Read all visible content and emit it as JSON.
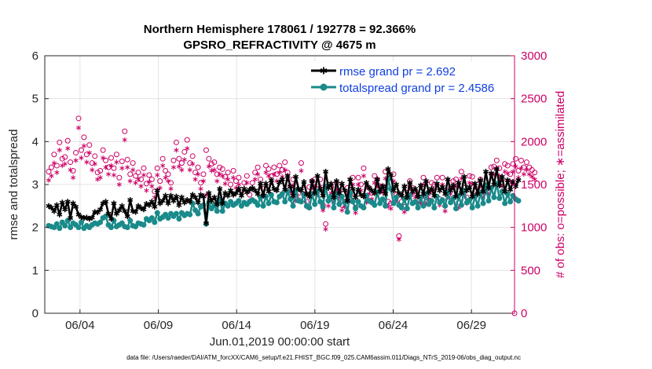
{
  "chart_data": {
    "type": "line",
    "title_line1": "Northern Hemisphere 178061 / 192778 = 92.366%",
    "title_line2": "GPSRO_REFRACTIVITY @ 4675 m",
    "xlabel": "Jun.01,2019 00:00:00 start",
    "ylabel_left": "rmse and totalspread",
    "ylabel_right": "# of obs: o=possible; ∗=assimilated",
    "xlim": [
      0.75,
      30.75
    ],
    "ylim_left": [
      0,
      6
    ],
    "ylim_right": [
      0,
      3000
    ],
    "x_ticks": [
      {
        "value": 3,
        "label": "06/04"
      },
      {
        "value": 8,
        "label": "06/09"
      },
      {
        "value": 13,
        "label": "06/14"
      },
      {
        "value": 18,
        "label": "06/19"
      },
      {
        "value": 23,
        "label": "06/24"
      },
      {
        "value": 28,
        "label": "06/29"
      }
    ],
    "y_ticks_left": [
      0,
      1,
      2,
      3,
      4,
      5,
      6
    ],
    "y_ticks_right": [
      0,
      500,
      1000,
      1500,
      2000,
      2500,
      3000
    ],
    "grid": true,
    "legend_position": "top-right",
    "colors": {
      "rmse": "#000000",
      "spread": "#1a8a8a",
      "obs": "#cc0066",
      "legend_text": "#1040e0"
    },
    "series": [
      {
        "name": "rmse grand pr = 2.692",
        "marker": "asterisk",
        "values": [
          2.5,
          2.46,
          2.38,
          2.52,
          2.3,
          2.58,
          2.42,
          2.6,
          2.22,
          2.56,
          2.48,
          2.3,
          2.24,
          2.22,
          2.23,
          2.2,
          2.23,
          2.36,
          2.35,
          2.42,
          2.56,
          2.6,
          2.32,
          2.2,
          2.56,
          2.32,
          2.4,
          2.5,
          2.38,
          2.26,
          2.64,
          2.38,
          2.36,
          2.5,
          2.45,
          2.42,
          2.55,
          2.52,
          2.6,
          2.48,
          2.86,
          2.56,
          2.62,
          2.74,
          2.56,
          2.74,
          2.62,
          2.72,
          2.52,
          2.7,
          2.58,
          2.64,
          2.6,
          2.76,
          2.7,
          2.58,
          2.76,
          2.72,
          2.1,
          2.8,
          2.62,
          2.7,
          2.54,
          2.9,
          2.56,
          2.8,
          2.74,
          2.86,
          2.76,
          2.8,
          2.9,
          2.74,
          2.9,
          2.82,
          2.88,
          2.92,
          2.86,
          2.78,
          3.02,
          2.74,
          3.02,
          2.84,
          3.1,
          2.9,
          2.86,
          3.05,
          3.12,
          2.88,
          3.2,
          2.95,
          2.74,
          3.18,
          2.9,
          2.86,
          3.06,
          2.78,
          2.72,
          3.08,
          2.8,
          3.2,
          2.9,
          2.74,
          3.3,
          2.92,
          3.02,
          2.7,
          3.08,
          2.8,
          3.02,
          2.86,
          2.62,
          3.12,
          2.9,
          2.7,
          2.88,
          2.76,
          2.72,
          3.04,
          2.92,
          2.86,
          2.8,
          3.12,
          2.84,
          2.96,
          2.78,
          3.36,
          3.22,
          2.86,
          3.0,
          2.8,
          2.74,
          2.96,
          2.7,
          3.04,
          2.84,
          2.9,
          2.72,
          2.98,
          2.78,
          3.08,
          2.82,
          2.9,
          2.74,
          3.02,
          2.86,
          2.94,
          2.78,
          3.12,
          2.86,
          2.98,
          2.72,
          3.04,
          2.8,
          3.18,
          2.86,
          2.94,
          2.72,
          3.02,
          2.78,
          3.1,
          2.84,
          3.3,
          2.92,
          3.26,
          3.0,
          3.36,
          2.98,
          3.18,
          2.84,
          3.1,
          2.88,
          3.06,
          2.96,
          3.1
        ]
      },
      {
        "name": "totalspread grand pr = 2.4586",
        "marker": "circle",
        "values": [
          2.04,
          2.02,
          2.0,
          2.08,
          1.98,
          2.12,
          2.04,
          2.16,
          2.0,
          2.1,
          2.06,
          2.0,
          2.12,
          1.98,
          2.04,
          2.0,
          2.06,
          2.1,
          2.08,
          2.12,
          2.22,
          2.26,
          2.06,
          2.0,
          2.16,
          2.02,
          2.06,
          2.1,
          2.02,
          2.0,
          2.16,
          2.04,
          2.02,
          2.1,
          2.08,
          2.06,
          2.2,
          2.16,
          2.22,
          2.12,
          2.34,
          2.2,
          2.24,
          2.3,
          2.22,
          2.32,
          2.26,
          2.32,
          2.2,
          2.34,
          2.28,
          2.32,
          2.3,
          2.56,
          2.4,
          2.32,
          2.48,
          2.52,
          2.08,
          2.58,
          2.44,
          2.52,
          2.38,
          2.66,
          2.38,
          2.56,
          2.5,
          2.6,
          2.52,
          2.56,
          2.62,
          2.5,
          2.58,
          2.54,
          2.6,
          2.64,
          2.6,
          2.52,
          2.7,
          2.5,
          2.72,
          2.56,
          2.76,
          2.6,
          2.58,
          2.72,
          2.78,
          2.6,
          2.84,
          2.66,
          2.5,
          2.86,
          2.62,
          2.6,
          2.76,
          2.5,
          2.46,
          2.78,
          2.54,
          2.84,
          2.6,
          2.48,
          2.96,
          2.62,
          2.72,
          2.46,
          2.78,
          2.54,
          2.72,
          2.58,
          2.36,
          2.8,
          2.6,
          2.44,
          2.6,
          2.5,
          2.46,
          2.74,
          2.62,
          2.58,
          2.52,
          2.82,
          2.56,
          2.66,
          2.5,
          3.12,
          2.9,
          2.56,
          2.7,
          2.52,
          2.46,
          2.66,
          2.44,
          2.74,
          2.56,
          2.6,
          2.46,
          2.7,
          2.5,
          2.78,
          2.54,
          2.62,
          2.46,
          2.72,
          2.58,
          2.64,
          2.5,
          2.82,
          2.58,
          2.68,
          2.44,
          2.74,
          2.52,
          2.86,
          2.58,
          2.64,
          2.46,
          2.72,
          2.5,
          2.8,
          2.56,
          2.98,
          2.62,
          2.92,
          2.7,
          3.02,
          2.68,
          2.84,
          2.56,
          2.78,
          2.6,
          2.74,
          2.66,
          2.62
        ]
      },
      {
        "name": "possible",
        "marker": "circle-open",
        "values": [
          1650,
          1700,
          1850,
          1720,
          1990,
          1800,
          1820,
          2010,
          1760,
          1660,
          1870,
          2270,
          1900,
          2050,
          1850,
          1960,
          1750,
          1830,
          1640,
          1660,
          1900,
          1780,
          1700,
          1810,
          1690,
          1850,
          1580,
          1770,
          2120,
          1790,
          1620,
          1750,
          1600,
          1640,
          1560,
          1690,
          1510,
          1610,
          1560,
          1420,
          1690,
          1540,
          1800,
          1660,
          1620,
          1520,
          1780,
          1990,
          1800,
          1750,
          1880,
          2020,
          1750,
          1830,
          1640,
          1700,
          1520,
          1620,
          1900,
          1800,
          1740,
          1760,
          1620,
          1700,
          1680,
          1590,
          1640,
          1500,
          1660,
          1540,
          1580,
          1440,
          1520,
          1600,
          1380,
          1520,
          1640,
          1700,
          1560,
          1450,
          1720,
          1680,
          1600,
          1700,
          1620,
          1720,
          1670,
          1760,
          1640,
          1480,
          1560,
          1380,
          1400,
          1750,
          1440,
          1300,
          1470,
          1540,
          1560,
          1450,
          1560,
          1260,
          1040,
          1310,
          1470,
          1360,
          1520,
          1420,
          1260,
          1300,
          1460,
          1380,
          1580,
          1230,
          1580,
          1500,
          1690,
          1360,
          1460,
          1400,
          1600,
          1560,
          1480,
          1480,
          1650,
          1300,
          1280,
          1620,
          1380,
          900,
          1300,
          1240,
          1460,
          1540,
          1460,
          1420,
          1360,
          1350,
          1580,
          1350,
          1400,
          1520,
          1500,
          1580,
          1330,
          1580,
          1250,
          1420,
          1460,
          1540,
          1560,
          1290,
          1650,
          1460,
          1350,
          1600,
          1590,
          1420,
          1500,
          1560,
          1420,
          1480,
          1460,
          1700,
          1710,
          1780,
          1690,
          1560,
          1740,
          1720,
          1620,
          1740,
          1800,
          1660,
          1780,
          1700,
          1760,
          1700,
          1670,
          1640
        ]
      },
      {
        "name": "assimilated",
        "marker": "asterisk",
        "values": [
          1550,
          1600,
          1750,
          1640,
          1900,
          1720,
          1740,
          1920,
          1670,
          1580,
          1780,
          2160,
          1810,
          1950,
          1760,
          1870,
          1670,
          1740,
          1560,
          1580,
          1810,
          1700,
          1620,
          1720,
          1610,
          1760,
          1500,
          1690,
          2020,
          1700,
          1540,
          1670,
          1520,
          1560,
          1480,
          1610,
          1430,
          1530,
          1480,
          1350,
          1610,
          1460,
          1720,
          1580,
          1540,
          1450,
          1700,
          1900,
          1710,
          1670,
          1790,
          1920,
          1670,
          1740,
          1560,
          1620,
          1450,
          1540,
          1380,
          1710,
          1660,
          1670,
          1540,
          1620,
          1600,
          1510,
          1560,
          1430,
          1580,
          1460,
          1500,
          1370,
          1450,
          1520,
          1310,
          1450,
          1560,
          1620,
          1480,
          1380,
          1640,
          1600,
          1520,
          1620,
          1540,
          1640,
          1590,
          1670,
          1560,
          1410,
          1490,
          1310,
          1330,
          1660,
          1370,
          1240,
          1400,
          1460,
          1480,
          1380,
          1480,
          1200,
          980,
          1250,
          1400,
          1290,
          1440,
          1350,
          1200,
          1240,
          1390,
          1310,
          1500,
          1170,
          1500,
          1430,
          1600,
          1290,
          1390,
          1330,
          1520,
          1480,
          1410,
          1410,
          1570,
          1240,
          1220,
          1540,
          1310,
          860,
          1240,
          1180,
          1390,
          1460,
          1390,
          1350,
          1290,
          1280,
          1500,
          1280,
          1330,
          1440,
          1430,
          1500,
          1260,
          1500,
          1190,
          1350,
          1390,
          1460,
          1480,
          1230,
          1570,
          1390,
          1280,
          1520,
          1510,
          1350,
          1430,
          1480,
          1350,
          1410,
          1390,
          1620,
          1620,
          1690,
          1600,
          1480,
          1650,
          1630,
          1540,
          1650,
          1710,
          1580,
          1690,
          1620,
          1670,
          1620,
          1590,
          1560
        ]
      }
    ]
  },
  "footer": "data file: /Users/raeder/DAI/ATM_forcXX/CAM6_setup/f.e21.FHIST_BGC.f09_025.CAM6assim.011/Diags_NTrS_2019-06/obs_diag_output.nc"
}
